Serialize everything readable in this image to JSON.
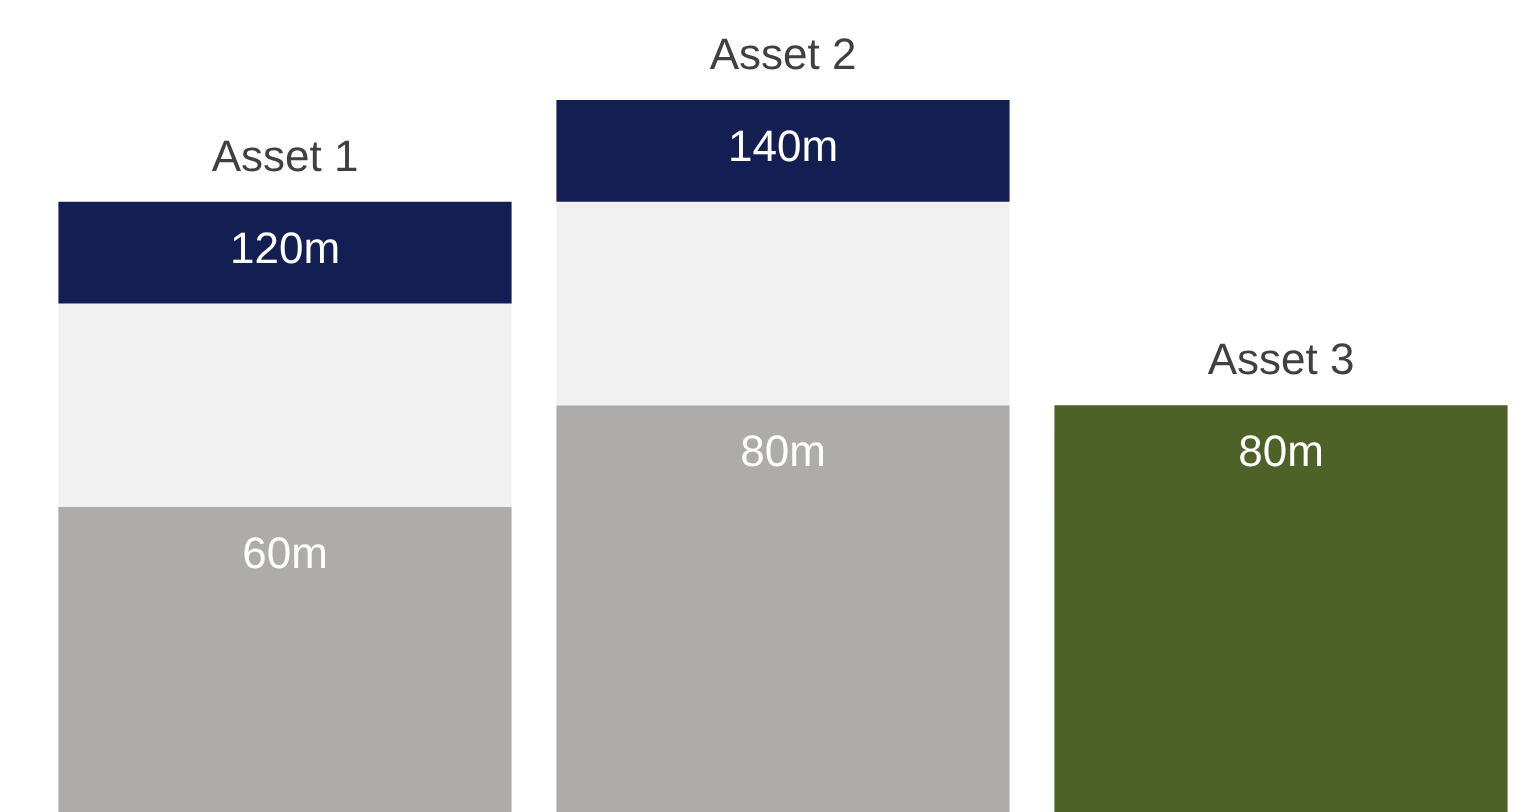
{
  "chart_data": {
    "type": "bar",
    "stacked": true,
    "categories": [
      "Asset 1",
      "Asset 2",
      "Asset 3"
    ],
    "series": [
      {
        "color": "#adacaa",
        "values": [
          60,
          80,
          null
        ],
        "value_labels": [
          "60m",
          "80m",
          null
        ]
      },
      {
        "color": "#f1f1f1",
        "values": [
          40,
          40,
          null
        ]
      },
      {
        "color": "#131e52",
        "values": [
          20,
          20,
          null
        ]
      },
      {
        "color": "#4e6127",
        "values": [
          null,
          null,
          80
        ],
        "value_labels": [
          null,
          null,
          "80m"
        ]
      }
    ],
    "totals": [
      "120m",
      "140m",
      null
    ]
  }
}
